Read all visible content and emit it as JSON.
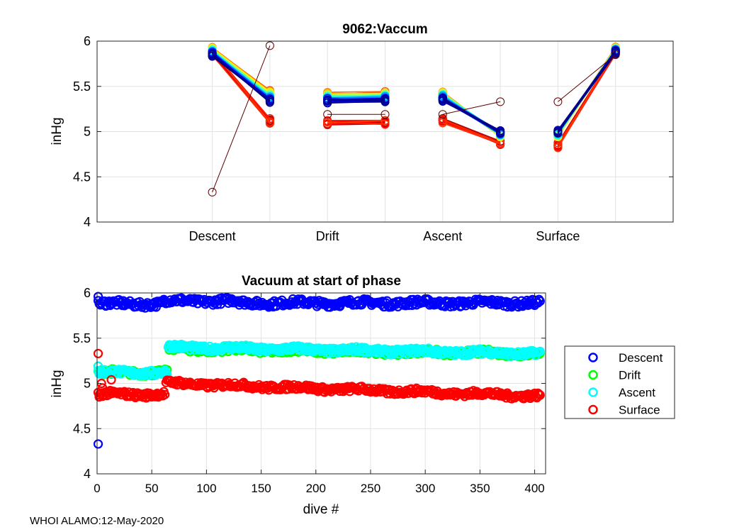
{
  "footer": "WHOI ALAMO:12-May-2020",
  "chart_data": [
    {
      "type": "line",
      "title": "9062:Vaccum",
      "ylabel": "inHg",
      "xlabel": "",
      "ylim": [
        4,
        6
      ],
      "yticks": [
        "4",
        "4.5",
        "5",
        "5.5",
        "6"
      ],
      "grid": true,
      "categories": [
        "Descent",
        "Drift",
        "Ascent",
        "Surface"
      ],
      "point_positions": [
        1,
        1.5,
        2,
        2.5,
        3,
        3.5,
        4,
        4.5
      ],
      "segments": [
        {
          "name": "Descent",
          "from": 1,
          "to": 1.5
        },
        {
          "name": "Drift",
          "from": 2,
          "to": 2.5
        },
        {
          "name": "Ascent",
          "from": 3,
          "to": 3.5
        },
        {
          "name": "Surface",
          "from": 4,
          "to": 4.5
        }
      ],
      "typical_values": {
        "early_dives": [
          5.87,
          5.12,
          5.1,
          5.1,
          5.12,
          4.87,
          4.85,
          5.88
        ],
        "mid_dives": [
          5.92,
          5.44,
          5.42,
          5.43,
          5.43,
          4.95,
          4.95,
          5.92
        ],
        "late_dives": [
          5.85,
          5.33,
          5.33,
          5.34,
          5.35,
          5.0,
          5.0,
          5.88
        ]
      },
      "outlier_dive": [
        4.33,
        5.95,
        5.19,
        5.19,
        5.19,
        5.33,
        5.33,
        5.85
      ],
      "color_scale": "jet (dive 1 = dark red, last dive = dark blue)"
    },
    {
      "type": "scatter",
      "title": "Vacuum at start of phase",
      "xlabel": "dive #",
      "ylabel": "inHg",
      "xlim": [
        0,
        410
      ],
      "ylim": [
        4,
        6
      ],
      "xticks": [
        "0",
        "50",
        "100",
        "150",
        "200",
        "250",
        "300",
        "350",
        "400"
      ],
      "yticks": [
        "4",
        "4.5",
        "5",
        "5.5",
        "6"
      ],
      "grid": true,
      "legend_position": "outside-right",
      "series": [
        {
          "name": "Descent",
          "color": "#0000ff",
          "first_value": 4.33,
          "segments": [
            {
              "x": [
                1,
                60
              ],
              "y": 5.88
            },
            {
              "x": [
                60,
                130
              ],
              "y": 5.91
            },
            {
              "x": [
                130,
                405
              ],
              "y": 5.89
            }
          ],
          "end_value": 5.83
        },
        {
          "name": "Drift",
          "color": "#00ff00",
          "first_value": 5.19,
          "segments": [
            {
              "x": [
                1,
                64
              ],
              "y": 5.12
            },
            {
              "x": [
                66,
                405
              ],
              "y": 5.38
            }
          ],
          "end_value": 5.33
        },
        {
          "name": "Ascent",
          "color": "#00ffff",
          "first_value": 5.19,
          "segments": [
            {
              "x": [
                1,
                64
              ],
              "y": 5.12
            },
            {
              "x": [
                66,
                405
              ],
              "y": 5.4
            }
          ],
          "end_value": 5.33
        },
        {
          "name": "Surface",
          "color": "#ff0000",
          "first_value": 5.33,
          "segments": [
            {
              "x": [
                1,
                62
              ],
              "y": 4.88
            },
            {
              "x": [
                63,
                405
              ],
              "y": 5.0
            }
          ],
          "end_value": 4.86
        }
      ]
    }
  ]
}
